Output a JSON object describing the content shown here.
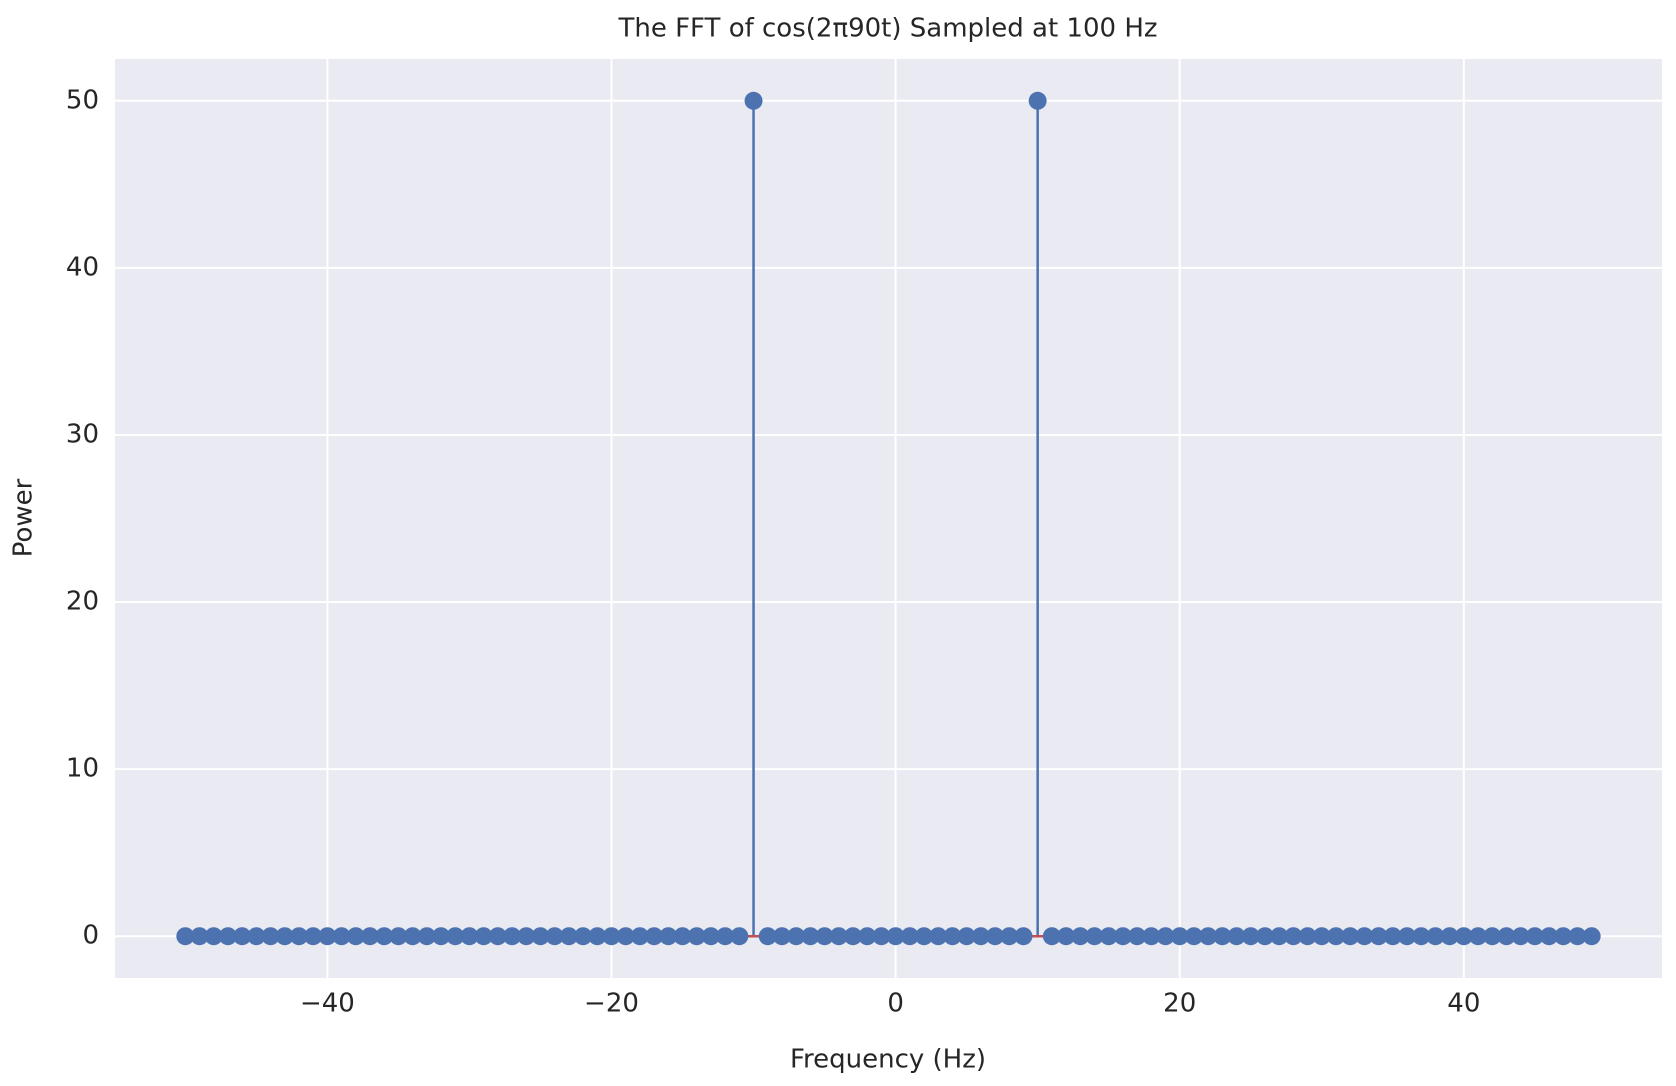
{
  "chart_data": {
    "type": "stem",
    "title": "The FFT of cos(2π90t) Sampled at 100 Hz",
    "x_label": "Frequency (Hz)",
    "y_label": "Power",
    "x": [
      -50,
      -49,
      -48,
      -47,
      -46,
      -45,
      -44,
      -43,
      -42,
      -41,
      -40,
      -39,
      -38,
      -37,
      -36,
      -35,
      -34,
      -33,
      -32,
      -31,
      -30,
      -29,
      -28,
      -27,
      -26,
      -25,
      -24,
      -23,
      -22,
      -21,
      -20,
      -19,
      -18,
      -17,
      -16,
      -15,
      -14,
      -13,
      -12,
      -11,
      -10,
      -9,
      -8,
      -7,
      -6,
      -5,
      -4,
      -3,
      -2,
      -1,
      0,
      1,
      2,
      3,
      4,
      5,
      6,
      7,
      8,
      9,
      10,
      11,
      12,
      13,
      14,
      15,
      16,
      17,
      18,
      19,
      20,
      21,
      22,
      23,
      24,
      25,
      26,
      27,
      28,
      29,
      30,
      31,
      32,
      33,
      34,
      35,
      36,
      37,
      38,
      39,
      40,
      41,
      42,
      43,
      44,
      45,
      46,
      47,
      48,
      49
    ],
    "values": [
      0,
      0,
      0,
      0,
      0,
      0,
      0,
      0,
      0,
      0,
      0,
      0,
      0,
      0,
      0,
      0,
      0,
      0,
      0,
      0,
      0,
      0,
      0,
      0,
      0,
      0,
      0,
      0,
      0,
      0,
      0,
      0,
      0,
      0,
      0,
      0,
      0,
      0,
      0,
      0,
      50,
      0,
      0,
      0,
      0,
      0,
      0,
      0,
      0,
      0,
      0,
      0,
      0,
      0,
      0,
      0,
      0,
      0,
      0,
      0,
      50,
      0,
      0,
      0,
      0,
      0,
      0,
      0,
      0,
      0,
      0,
      0,
      0,
      0,
      0,
      0,
      0,
      0,
      0,
      0,
      0,
      0,
      0,
      0,
      0,
      0,
      0,
      0,
      0,
      0,
      0,
      0,
      0,
      0,
      0,
      0,
      0,
      0,
      0,
      0
    ],
    "color": "#4c72b0",
    "baseline_color": "#c44e52",
    "xlim": [
      -54.95,
      53.95
    ],
    "ylim": [
      -2.5,
      52.5
    ],
    "xticks": [
      {
        "value": -40,
        "label": "−40"
      },
      {
        "value": -20,
        "label": "−20"
      },
      0,
      20,
      40
    ],
    "yticks": [
      0,
      10,
      20,
      30,
      40,
      50
    ],
    "grid": true,
    "background": "#eaeaf2"
  }
}
